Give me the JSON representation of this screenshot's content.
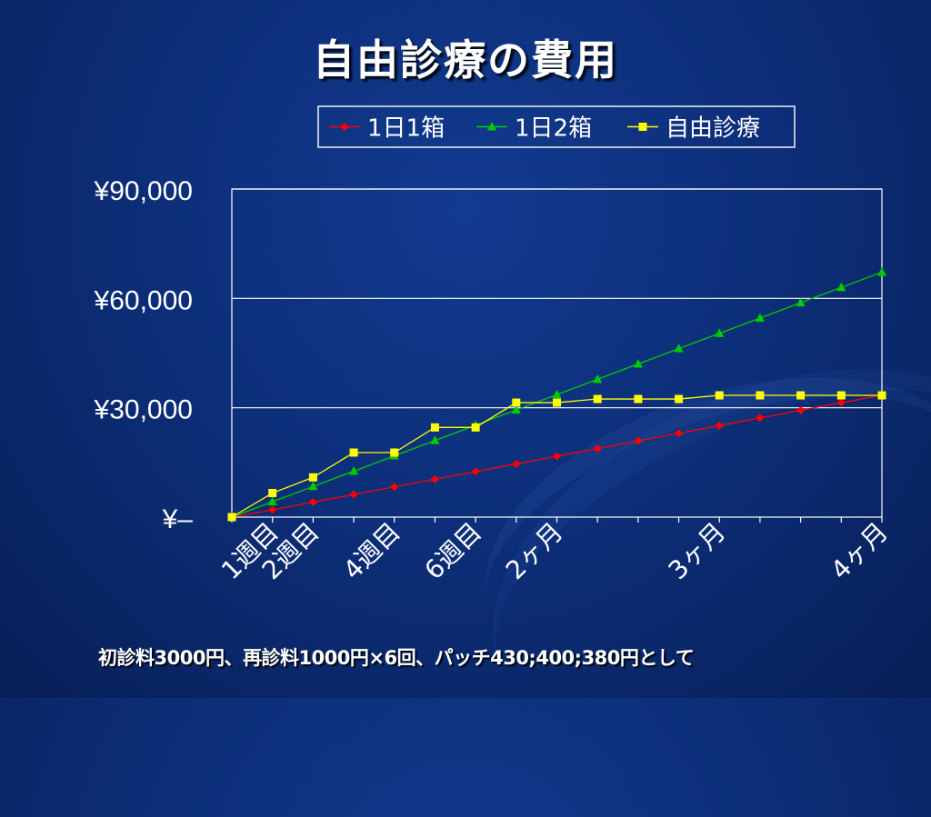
{
  "title": "自由診療の費用",
  "footnote": "初診料3000円、再診料1000円×6回、パッチ430;400;380円として",
  "colors": {
    "series1": "#ff0000",
    "series2": "#00cc00",
    "series3": "#ffff00",
    "gridline": "#ffffff",
    "text": "#ffffff"
  },
  "chart_data": {
    "type": "line",
    "title": "",
    "xlabel": "",
    "ylabel": "",
    "ylim": [
      0,
      90000
    ],
    "yticks": [
      "¥90,000",
      "¥60,000",
      "¥30,000",
      "¥–"
    ],
    "ytick_values": [
      90000,
      60000,
      30000,
      0
    ],
    "grid": true,
    "legend_position": "top",
    "x_labels": [
      {
        "index": 1,
        "label": "1週目"
      },
      {
        "index": 2,
        "label": "2週目"
      },
      {
        "index": 4,
        "label": "4週目"
      },
      {
        "index": 6,
        "label": "6週目"
      },
      {
        "index": 8,
        "label": "2ヶ月"
      },
      {
        "index": 12,
        "label": "3ヶ月"
      },
      {
        "index": 16,
        "label": "4ヶ月"
      }
    ],
    "series": [
      {
        "name": "1日1箱",
        "marker": "diamond",
        "color": "#ff0000",
        "values": [
          0,
          2000,
          4100,
          6200,
          8300,
          10400,
          12500,
          14600,
          16700,
          18800,
          20900,
          23000,
          25100,
          27200,
          29300,
          31400,
          33400
        ]
      },
      {
        "name": "1日2箱",
        "marker": "triangle",
        "color": "#00cc00",
        "values": [
          0,
          4200,
          8400,
          12600,
          16800,
          21000,
          25200,
          29400,
          33600,
          37800,
          42000,
          46200,
          50400,
          54600,
          58800,
          63000,
          67200
        ]
      },
      {
        "name": "自由診療",
        "marker": "square",
        "color": "#ffff00",
        "values": [
          0,
          6600,
          10900,
          17700,
          17700,
          24600,
          24600,
          31400,
          31400,
          32400,
          32400,
          32400,
          33400,
          33400,
          33400,
          33400,
          33400
        ]
      }
    ]
  }
}
